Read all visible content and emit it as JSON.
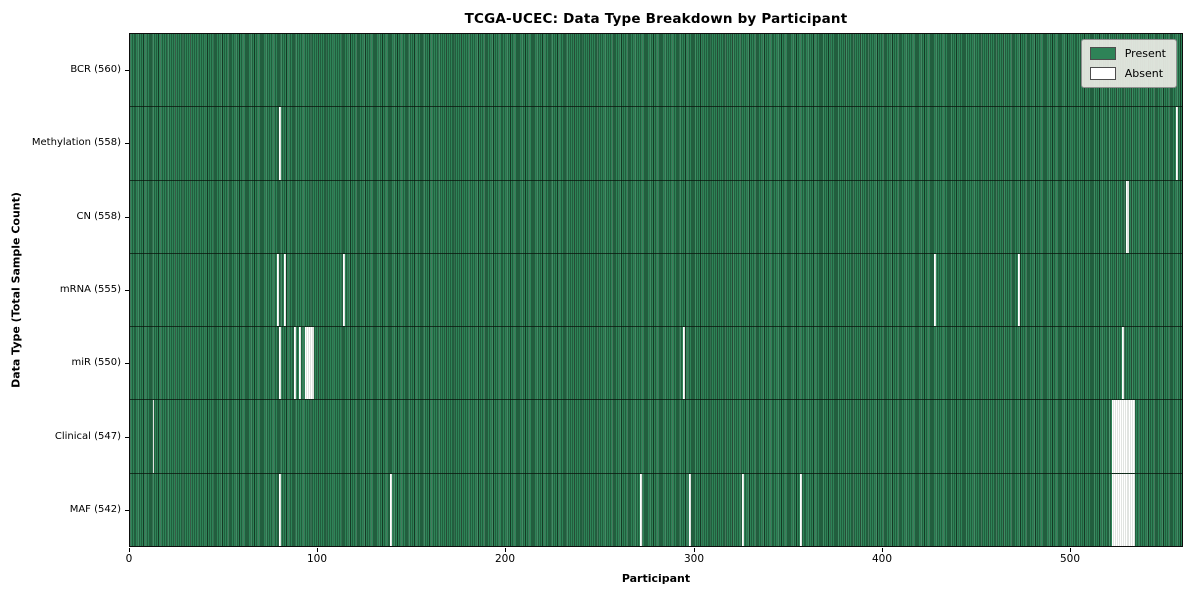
{
  "title": "TCGA-UCEC: Data Type Breakdown by Participant",
  "x_axis": {
    "label": "Participant"
  },
  "y_axis": {
    "label": "Data Type (Total Sample Count)"
  },
  "legend": [
    {
      "label": "Present",
      "color": "#2e8357"
    },
    {
      "label": "Absent",
      "color": "#ffffff"
    }
  ],
  "chart_data": {
    "type": "heatmap",
    "title": "TCGA-UCEC: Data Type Breakdown by Participant",
    "xlabel": "Participant",
    "ylabel": "Data Type (Total Sample Count)",
    "n_participants": 560,
    "x_ticks": [
      0,
      100,
      200,
      300,
      400,
      500
    ],
    "xlim": [
      0,
      560
    ],
    "grid": false,
    "legend_position": "upper right",
    "colors": {
      "present": "#2e8357",
      "present_edge": "#153a25",
      "absent": "#ffffff"
    },
    "rows": [
      {
        "name": "BCR",
        "label": "BCR (560)",
        "present_count": 560,
        "absent_participants": []
      },
      {
        "name": "Methylation",
        "label": "Methylation (558)",
        "present_count": 558,
        "absent_participants": [
          79,
          556
        ]
      },
      {
        "name": "CN",
        "label": "CN (558)",
        "present_count": 558,
        "absent_participants": [
          529,
          530
        ]
      },
      {
        "name": "mRNA",
        "label": "mRNA (555)",
        "present_count": 555,
        "absent_participants": [
          78,
          82,
          113,
          427,
          472
        ]
      },
      {
        "name": "miR",
        "label": "miR (550)",
        "present_count": 550,
        "absent_participants": [
          79,
          87,
          90,
          93,
          94,
          95,
          96,
          97,
          294,
          527
        ]
      },
      {
        "name": "Clinical",
        "label": "Clinical (547)",
        "present_count": 547,
        "absent_participants": [
          12,
          522,
          523,
          524,
          525,
          526,
          527,
          528,
          529,
          530,
          531,
          532,
          533
        ]
      },
      {
        "name": "MAF",
        "label": "MAF (542)",
        "present_count": 542,
        "absent_participants": [
          79,
          138,
          271,
          297,
          325,
          356,
          522,
          523,
          524,
          525,
          526,
          527,
          528,
          529,
          530,
          531,
          532,
          533
        ]
      }
    ]
  }
}
